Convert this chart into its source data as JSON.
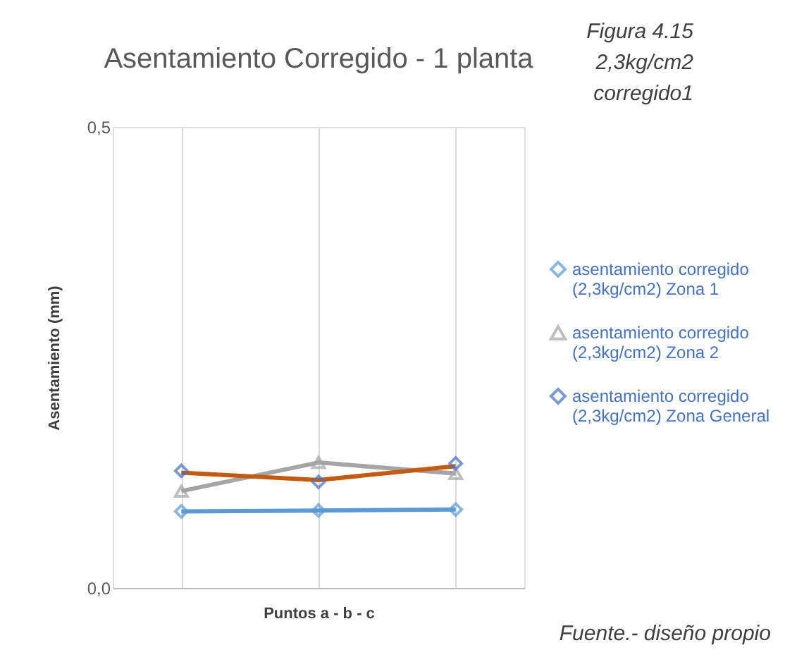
{
  "chart_data": {
    "type": "line",
    "title": "Asentamiento Corregido - 1 planta",
    "xlabel": "Puntos a - b - c",
    "ylabel": "Asentamiento (mm)",
    "annotations": [
      "Figura 4.15\n2,3kg/cm2\ncorregido1",
      "Fuente.- diseño propio"
    ],
    "categories": [
      null,
      null,
      null
    ],
    "series": [
      {
        "name": "asentamiento corregido (2,3kg/cm2) Zona 1",
        "type": "line",
        "marker": "diamond",
        "color": "#5b9bd5",
        "values": [
          0.083,
          0.084,
          0.085
        ]
      },
      {
        "name": "asentamiento corregido (2,3kg/cm2) Zona 2",
        "type": "line",
        "marker": "triangle",
        "color": "#a5a5a5",
        "values": [
          0.105,
          0.136,
          0.124
        ]
      },
      {
        "name": "asentamiento corregido (2,3kg/cm2) Zona General",
        "type": "scatter",
        "marker": "diamond",
        "color": "#4472c4",
        "values": [
          0.127,
          0.115,
          0.135
        ]
      },
      {
        "type": "line",
        "marker": "none",
        "color": "#c55a11",
        "values": [
          0.125,
          0.117,
          0.132
        ]
      }
    ],
    "ylim": [
      0,
      0.5
    ],
    "yticks": [
      {
        "value": 0,
        "label": "0,0"
      },
      {
        "value": 0.5,
        "label": "0,5"
      }
    ],
    "grid": "x",
    "legend": "right"
  }
}
